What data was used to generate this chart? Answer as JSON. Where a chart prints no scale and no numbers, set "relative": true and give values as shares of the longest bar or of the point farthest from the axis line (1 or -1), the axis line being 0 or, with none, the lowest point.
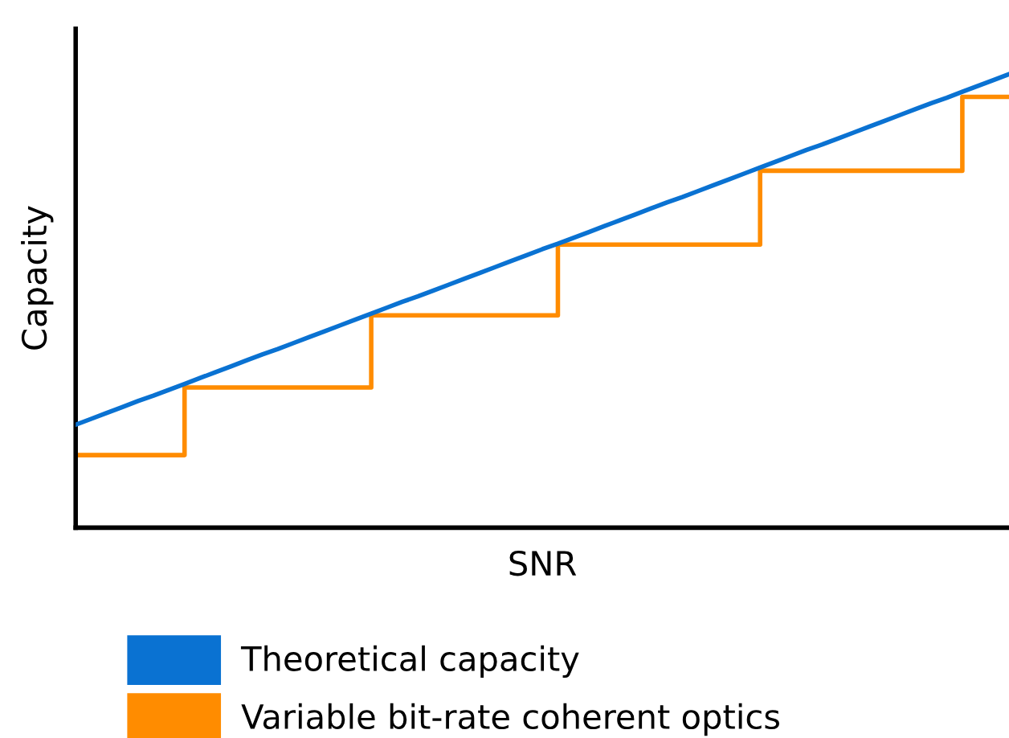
{
  "chart_data": {
    "type": "line",
    "relative": true,
    "xlabel": "SNR",
    "ylabel": "Capacity",
    "legend": "bottom",
    "tick_labels": false,
    "grid": false,
    "categories": [
      null,
      null,
      null,
      null,
      null,
      null,
      null,
      null,
      null,
      null,
      null,
      null,
      null,
      null,
      null,
      null,
      null,
      null,
      null,
      null,
      null,
      null,
      null,
      null,
      null,
      null,
      null,
      null,
      null,
      null,
      null,
      null,
      null,
      null,
      null,
      null,
      null,
      null,
      null,
      null,
      null,
      null,
      null,
      null,
      null,
      null,
      null,
      null,
      null,
      null,
      null,
      null,
      null,
      null,
      null,
      null,
      null,
      null,
      null,
      null,
      null
    ],
    "series": [
      {
        "name": "Theoretical capacity",
        "color": "#0a72d2",
        "values": [
          0.227,
          0.24,
          0.253,
          0.266,
          0.279,
          0.291,
          0.304,
          0.317,
          0.33,
          0.343,
          0.356,
          0.369,
          0.382,
          0.394,
          0.407,
          0.42,
          0.433,
          0.446,
          0.459,
          0.472,
          0.485,
          0.498,
          0.51,
          0.523,
          0.536,
          0.549,
          0.562,
          0.575,
          0.588,
          0.601,
          0.614,
          0.626,
          0.639,
          0.652,
          0.665,
          0.678,
          0.691,
          0.704,
          0.717,
          0.729,
          0.742,
          0.755,
          0.768,
          0.781,
          0.794,
          0.807,
          0.82,
          0.833,
          0.845,
          0.858,
          0.871,
          0.884,
          0.897,
          0.91,
          0.923,
          0.936,
          0.948,
          0.961,
          0.974,
          0.987,
          1.0
        ]
      },
      {
        "name": "Variable bit-rate coherent optics",
        "type": "step",
        "color": "#ff8c00",
        "values": [
          0.16,
          0.16,
          0.16,
          0.16,
          0.16,
          0.16,
          0.16,
          0.309,
          0.309,
          0.309,
          0.309,
          0.309,
          0.309,
          0.309,
          0.309,
          0.309,
          0.309,
          0.309,
          0.309,
          0.468,
          0.468,
          0.468,
          0.468,
          0.468,
          0.468,
          0.468,
          0.468,
          0.468,
          0.468,
          0.468,
          0.468,
          0.624,
          0.624,
          0.624,
          0.624,
          0.624,
          0.624,
          0.624,
          0.624,
          0.624,
          0.624,
          0.624,
          0.624,
          0.624,
          0.787,
          0.787,
          0.787,
          0.787,
          0.787,
          0.787,
          0.787,
          0.787,
          0.787,
          0.787,
          0.787,
          0.787,
          0.787,
          0.95,
          0.95,
          0.95,
          0.95
        ]
      }
    ]
  }
}
